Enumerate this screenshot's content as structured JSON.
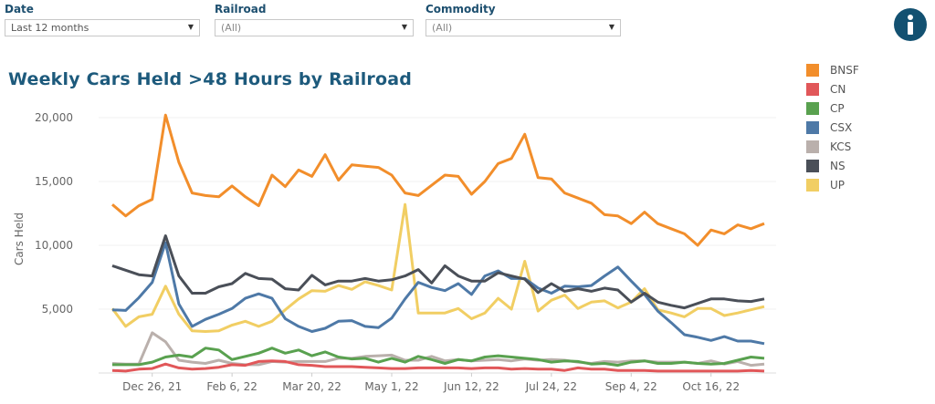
{
  "filters": {
    "date": {
      "label": "Date",
      "value": "Last 12 months"
    },
    "railroad": {
      "label": "Railroad",
      "value": "(All)"
    },
    "commodity": {
      "label": "Commodity",
      "value": "(All)"
    }
  },
  "info_icon": "info-icon",
  "chart_data": {
    "type": "line",
    "title": "Weekly Cars Held >48 Hours by Railroad",
    "xlabel": "",
    "ylabel": "Cars Held",
    "ylim": [
      0,
      20000
    ],
    "yticks": [
      "5,000",
      "10,000",
      "15,000",
      "20,000"
    ],
    "ytick_values": [
      5000,
      10000,
      15000,
      20000
    ],
    "xticks": [
      "Dec 26, 21",
      "Feb 6, 22",
      "Mar 20, 22",
      "May 1, 22",
      "Jun 12, 22",
      "Jul 24, 22",
      "Sep 4, 22",
      "Oct 16, 22"
    ],
    "xtick_dates": [
      "2021-12-26",
      "2022-02-06",
      "2022-03-20",
      "2022-05-01",
      "2022-06-12",
      "2022-07-24",
      "2022-09-04",
      "2022-10-16"
    ],
    "grid": "horizontal",
    "legend": "right",
    "x": [
      "2021-12-05",
      "2021-12-12",
      "2021-12-19",
      "2021-12-26",
      "2022-01-02",
      "2022-01-09",
      "2022-01-16",
      "2022-01-23",
      "2022-01-30",
      "2022-02-06",
      "2022-02-13",
      "2022-02-20",
      "2022-02-27",
      "2022-03-06",
      "2022-03-13",
      "2022-03-20",
      "2022-03-27",
      "2022-04-03",
      "2022-04-10",
      "2022-04-17",
      "2022-04-24",
      "2022-05-01",
      "2022-05-08",
      "2022-05-15",
      "2022-05-22",
      "2022-05-29",
      "2022-06-05",
      "2022-06-12",
      "2022-06-19",
      "2022-06-26",
      "2022-07-03",
      "2022-07-10",
      "2022-07-17",
      "2022-07-24",
      "2022-07-31",
      "2022-08-07",
      "2022-08-14",
      "2022-08-21",
      "2022-08-28",
      "2022-09-04",
      "2022-09-11",
      "2022-09-18",
      "2022-09-25",
      "2022-10-02",
      "2022-10-09",
      "2022-10-16",
      "2022-10-23",
      "2022-10-30",
      "2022-11-06",
      "2022-11-13"
    ],
    "series": [
      {
        "name": "BNSF",
        "color": "#f28e2b",
        "values": [
          13200,
          12300,
          13100,
          13600,
          20200,
          16500,
          14100,
          13900,
          13800,
          14650,
          13800,
          13100,
          15500,
          14600,
          15900,
          15400,
          17100,
          15100,
          16300,
          16200,
          16100,
          15500,
          14100,
          13900,
          14700,
          15500,
          15400,
          14000,
          15000,
          16400,
          16800,
          18700,
          15300,
          15200,
          14100,
          13700,
          13300,
          12400,
          12300,
          11700,
          12600,
          11700,
          11300,
          10900,
          10000,
          11200,
          10900,
          11600,
          11300,
          11700
        ]
      },
      {
        "name": "CN",
        "color": "#e15759",
        "values": [
          200,
          150,
          300,
          350,
          700,
          400,
          300,
          350,
          450,
          650,
          600,
          900,
          950,
          900,
          650,
          600,
          500,
          500,
          500,
          450,
          400,
          350,
          350,
          400,
          400,
          400,
          400,
          350,
          400,
          400,
          300,
          350,
          300,
          300,
          200,
          400,
          300,
          300,
          200,
          200,
          200,
          150,
          150,
          150,
          150,
          150,
          150,
          150,
          200,
          150
        ]
      },
      {
        "name": "CP",
        "color": "#59a14f",
        "values": [
          650,
          650,
          650,
          850,
          1250,
          1400,
          1250,
          1950,
          1800,
          1050,
          1300,
          1550,
          1950,
          1550,
          1800,
          1350,
          1650,
          1250,
          1100,
          1150,
          850,
          1150,
          850,
          1300,
          1050,
          750,
          1050,
          950,
          1250,
          1350,
          1250,
          1150,
          1050,
          850,
          950,
          900,
          700,
          750,
          600,
          850,
          950,
          750,
          750,
          850,
          750,
          700,
          750,
          1000,
          1250,
          1150
        ]
      },
      {
        "name": "CSX",
        "color": "#4e79a7",
        "values": [
          4950,
          4900,
          5900,
          7100,
          10200,
          5400,
          3650,
          4200,
          4600,
          5050,
          5850,
          6200,
          5850,
          4250,
          3650,
          3250,
          3500,
          4050,
          4100,
          3650,
          3550,
          4300,
          5800,
          7100,
          6700,
          6450,
          7000,
          6150,
          7600,
          8000,
          7400,
          7400,
          6650,
          6250,
          6800,
          6750,
          6850,
          7600,
          8300,
          7200,
          6150,
          4850,
          3950,
          3000,
          2800,
          2550,
          2850,
          2500,
          2500,
          2300
        ]
      },
      {
        "name": "KCS",
        "color": "#bab0ac",
        "values": [
          750,
          700,
          700,
          3150,
          2450,
          1000,
          850,
          750,
          1000,
          750,
          650,
          650,
          900,
          850,
          900,
          900,
          900,
          1150,
          1150,
          1300,
          1350,
          1400,
          1000,
          1000,
          1300,
          950,
          1050,
          950,
          1000,
          1050,
          950,
          1100,
          1000,
          1050,
          1000,
          850,
          750,
          900,
          850,
          950,
          950,
          850,
          850,
          850,
          750,
          950,
          700,
          900,
          600,
          700
        ]
      },
      {
        "name": "NS",
        "color": "#4a4f58",
        "values": [
          8400,
          8050,
          7700,
          7600,
          10750,
          7600,
          6250,
          6250,
          6750,
          7000,
          7800,
          7400,
          7350,
          6600,
          6500,
          7650,
          6900,
          7200,
          7200,
          7400,
          7200,
          7300,
          7600,
          8100,
          7050,
          8400,
          7600,
          7200,
          7200,
          7850,
          7600,
          7350,
          6300,
          7000,
          6400,
          6600,
          6400,
          6650,
          6500,
          5550,
          6250,
          5550,
          5300,
          5100,
          5450,
          5800,
          5800,
          5650,
          5600,
          5800
        ]
      },
      {
        "name": "UP",
        "color": "#f1ce63",
        "values": [
          5050,
          3650,
          4400,
          4600,
          6800,
          4600,
          3300,
          3250,
          3300,
          3750,
          4050,
          3650,
          4050,
          4950,
          5800,
          6450,
          6400,
          6850,
          6550,
          7150,
          6850,
          6500,
          13200,
          4700,
          4700,
          4700,
          5050,
          4250,
          4700,
          5850,
          5000,
          8750,
          4850,
          5700,
          6100,
          5050,
          5550,
          5650,
          5100,
          5550,
          6600,
          4950,
          4700,
          4400,
          5050,
          5050,
          4500,
          4700,
          4950,
          5200
        ]
      }
    ]
  }
}
